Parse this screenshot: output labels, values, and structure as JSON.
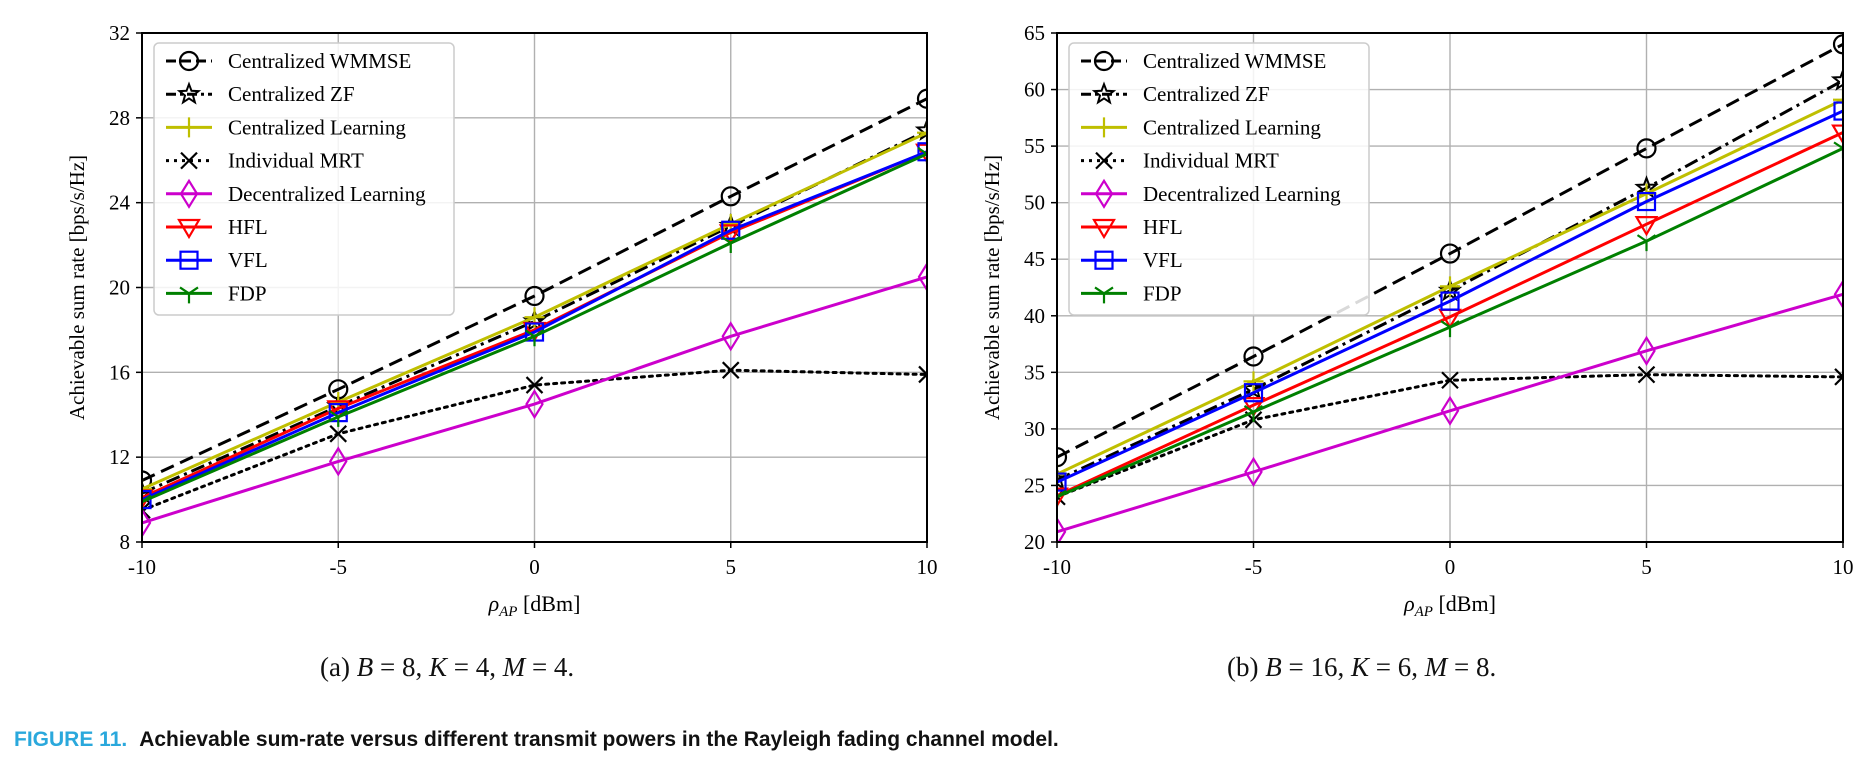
{
  "colors": {
    "wmmse": "#000000",
    "zf": "#000000",
    "central_learning": "#bfbf00",
    "mrt": "#000000",
    "decentral": "#cc00cc",
    "hfl": "#ff0000",
    "vfl": "#0000ff",
    "fdp": "#008000",
    "caption_label": "#2aa8dc"
  },
  "caption": {
    "label": "FIGURE 11.",
    "text": "Achievable sum-rate versus different transmit powers in the Rayleigh fading channel model."
  },
  "chart_data": [
    {
      "type": "line",
      "subcaption": "(a) B = 8, K = 4, M = 4.",
      "xlabel": "ρAP [dBm]",
      "ylabel": "Achievable sum rate [bps/s/Hz]",
      "xlim": [
        -10,
        10
      ],
      "ylim": [
        8,
        32
      ],
      "xticks": [
        -10,
        -5,
        0,
        5,
        10
      ],
      "yticks": [
        8,
        12,
        16,
        20,
        24,
        28,
        32
      ],
      "grid": true,
      "legend": "top-left",
      "x": [
        -10,
        -5,
        0,
        5,
        10
      ],
      "series": [
        {
          "name": "Centralized WMMSE",
          "values": [
            10.9,
            15.2,
            19.6,
            24.3,
            28.9
          ],
          "style": "dashed",
          "marker": "circle",
          "color_key": "wmmse"
        },
        {
          "name": "Centralized ZF",
          "values": [
            10.3,
            14.4,
            18.4,
            22.9,
            27.4
          ],
          "style": "dashdot",
          "marker": "star",
          "color_key": "zf"
        },
        {
          "name": "Centralized Learning",
          "values": [
            10.5,
            14.6,
            18.6,
            23.0,
            27.3
          ],
          "style": "solid",
          "marker": "plus",
          "color_key": "central_learning"
        },
        {
          "name": "Individual MRT",
          "values": [
            9.5,
            13.1,
            15.4,
            16.1,
            15.9
          ],
          "style": "dotted",
          "marker": "x",
          "color_key": "mrt"
        },
        {
          "name": "Decentralized Learning",
          "values": [
            8.9,
            11.8,
            14.5,
            17.7,
            20.5
          ],
          "style": "solid",
          "marker": "diamond",
          "color_key": "decentral"
        },
        {
          "name": "HFL",
          "values": [
            10.1,
            14.3,
            18.0,
            22.6,
            26.4
          ],
          "style": "solid",
          "marker": "triangle-down",
          "color_key": "hfl"
        },
        {
          "name": "VFL",
          "values": [
            10.0,
            14.1,
            17.9,
            22.7,
            26.4
          ],
          "style": "solid",
          "marker": "square",
          "color_key": "vfl"
        },
        {
          "name": "FDP",
          "values": [
            9.9,
            13.9,
            17.7,
            22.1,
            26.3
          ],
          "style": "solid",
          "marker": "tri",
          "color_key": "fdp"
        }
      ]
    },
    {
      "type": "line",
      "subcaption": "(b) B = 16, K = 6, M = 8.",
      "xlabel": "ρAP [dBm]",
      "ylabel": "Achievable sum rate [bps/s/Hz]",
      "xlim": [
        -10,
        10
      ],
      "ylim": [
        20,
        65
      ],
      "xticks": [
        -10,
        -5,
        0,
        5,
        10
      ],
      "yticks": [
        20,
        25,
        30,
        35,
        40,
        45,
        50,
        55,
        60,
        65
      ],
      "grid": true,
      "legend": "top-left",
      "x": [
        -10,
        -5,
        0,
        5,
        10
      ],
      "series": [
        {
          "name": "Centralized WMMSE",
          "values": [
            27.5,
            36.4,
            45.5,
            54.8,
            64.0
          ],
          "style": "dashed",
          "marker": "circle",
          "color_key": "wmmse"
        },
        {
          "name": "Centralized ZF",
          "values": [
            25.5,
            33.5,
            42.2,
            51.3,
            60.8
          ],
          "style": "dashdot",
          "marker": "star",
          "color_key": "zf"
        },
        {
          "name": "Centralized Learning",
          "values": [
            26.0,
            34.2,
            42.6,
            50.8,
            59.1
          ],
          "style": "solid",
          "marker": "plus",
          "color_key": "central_learning"
        },
        {
          "name": "Individual MRT",
          "values": [
            24.0,
            30.8,
            34.3,
            34.8,
            34.6
          ],
          "style": "dotted",
          "marker": "x",
          "color_key": "mrt"
        },
        {
          "name": "Decentralized Learning",
          "values": [
            20.9,
            26.2,
            31.6,
            36.9,
            41.9
          ],
          "style": "solid",
          "marker": "diamond",
          "color_key": "decentral"
        },
        {
          "name": "HFL",
          "values": [
            24.1,
            32.1,
            39.9,
            48.1,
            56.2
          ],
          "style": "solid",
          "marker": "triangle-down",
          "color_key": "hfl"
        },
        {
          "name": "VFL",
          "values": [
            25.3,
            33.2,
            41.3,
            50.1,
            58.1
          ],
          "style": "solid",
          "marker": "square",
          "color_key": "vfl"
        },
        {
          "name": "FDP",
          "values": [
            24.0,
            31.5,
            39.0,
            46.6,
            54.8
          ],
          "style": "solid",
          "marker": "tri",
          "color_key": "fdp"
        }
      ]
    }
  ]
}
